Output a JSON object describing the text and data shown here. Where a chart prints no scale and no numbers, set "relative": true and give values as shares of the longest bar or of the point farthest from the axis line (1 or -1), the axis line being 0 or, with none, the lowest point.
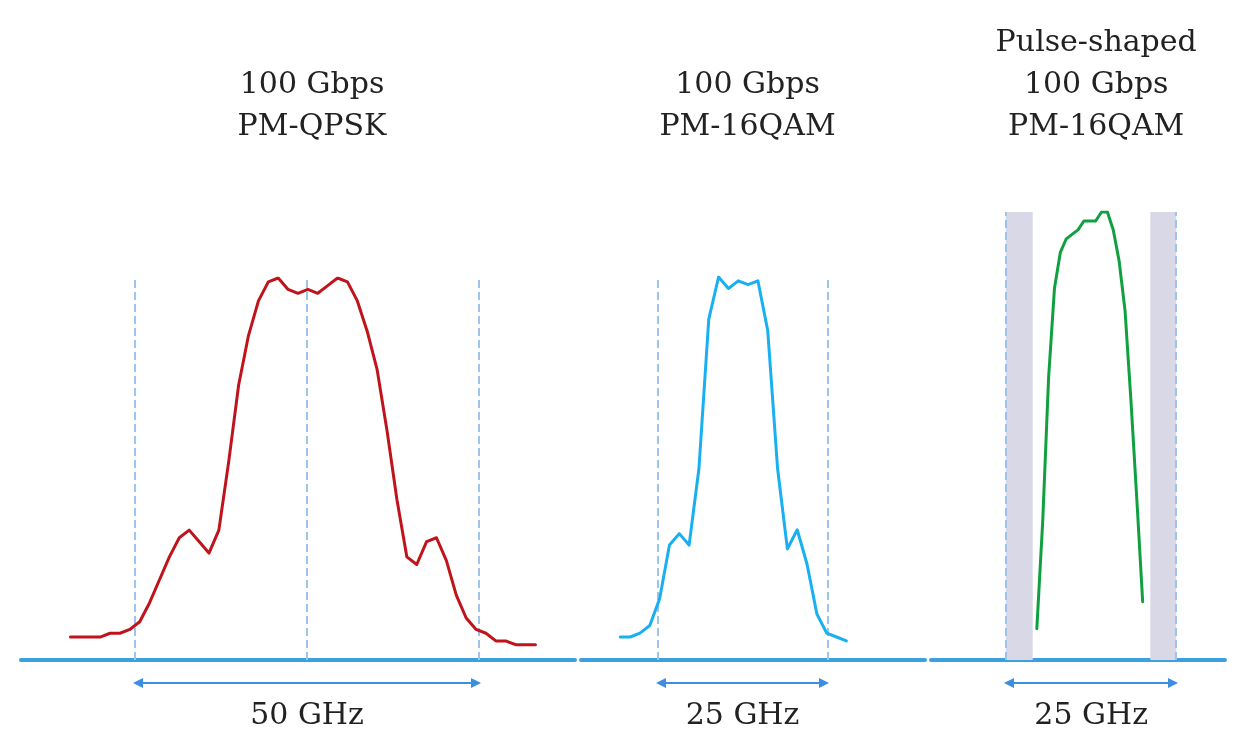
{
  "chart_data": [
    {
      "type": "line",
      "title": "100 Gbps\nPM-QPSK",
      "relative": true,
      "categories": [
        null,
        null,
        null,
        null,
        null,
        null,
        null,
        null,
        null,
        null,
        null,
        null,
        null,
        null,
        null,
        null,
        null,
        null,
        null,
        null,
        null,
        null,
        null,
        null,
        null,
        null,
        null,
        null,
        null,
        null,
        null,
        null,
        null,
        null,
        null,
        null,
        null,
        null,
        null,
        null,
        null,
        null,
        null,
        null,
        null,
        null,
        null,
        null,
        null,
        null,
        null,
        null,
        null,
        null,
        null,
        null,
        null
      ],
      "annotations": [
        "50 GHz"
      ],
      "series": [
        {
          "color": "#c0141c",
          "values": [
            null,
            null,
            null,
            null,
            null,
            0.06,
            0.06,
            0.06,
            0.06,
            0.07,
            0.07,
            0.08,
            0.1,
            0.15,
            0.21,
            0.27,
            0.32,
            0.34,
            0.31,
            0.28,
            0.34,
            0.52,
            0.72,
            0.85,
            0.94,
            0.99,
            1,
            0.97,
            0.96,
            0.97,
            0.96,
            0.98,
            1,
            0.99,
            0.94,
            0.86,
            0.76,
            0.6,
            0.42,
            0.27,
            0.25,
            0.31,
            0.32,
            0.26,
            0.17,
            0.11,
            0.08,
            0.07,
            0.05,
            0.05,
            0.04,
            0.04,
            0.04,
            null,
            null,
            null,
            null
          ]
        }
      ]
    },
    {
      "type": "line",
      "title": "100 Gbps\nPM-16QAM",
      "relative": true,
      "categories": [
        null,
        null,
        null,
        null,
        null,
        null,
        null,
        null,
        null,
        null,
        null,
        null,
        null,
        null,
        null,
        null,
        null,
        null,
        null,
        null,
        null,
        null,
        null,
        null,
        null,
        null,
        null,
        null,
        null,
        null,
        null,
        null,
        null,
        null,
        null,
        null
      ],
      "annotations": [
        "25 GHz"
      ],
      "series": [
        {
          "color": "#18b0f0",
          "values": [
            null,
            null,
            null,
            null,
            0.06,
            0.06,
            0.07,
            0.09,
            0.16,
            0.3,
            0.33,
            0.3,
            0.5,
            0.89,
            1,
            0.97,
            0.99,
            0.98,
            0.99,
            0.86,
            0.5,
            0.29,
            0.34,
            0.25,
            0.12,
            0.07,
            0.06,
            0.05,
            null,
            null,
            null,
            null,
            null,
            null,
            null,
            null
          ]
        }
      ]
    },
    {
      "type": "line",
      "title": "Pulse-shaped\n100 Gbps\nPM-16QAM",
      "relative": true,
      "categories": [
        null,
        null,
        null,
        null,
        null,
        null,
        null,
        null,
        null,
        null,
        null,
        null,
        null,
        null,
        null,
        null,
        null,
        null,
        null,
        null,
        null,
        null,
        null,
        null,
        null,
        null,
        null,
        null,
        null,
        null,
        null,
        null,
        null,
        null,
        null,
        null,
        null,
        null,
        null,
        null,
        null,
        null,
        null,
        null,
        null,
        null,
        null,
        null,
        null,
        null,
        null
      ],
      "annotations": [
        "25 GHz"
      ],
      "series": [
        {
          "color": "#10a040",
          "values": [
            null,
            null,
            null,
            null,
            null,
            null,
            null,
            null,
            null,
            null,
            null,
            null,
            null,
            null,
            null,
            null,
            null,
            null,
            0.07,
            0.31,
            0.63,
            0.83,
            0.91,
            0.94,
            0.95,
            0.96,
            0.98,
            0.98,
            0.98,
            1,
            1,
            0.96,
            0.89,
            0.78,
            0.58,
            0.36,
            0.13,
            null,
            null,
            null,
            null,
            null,
            null,
            null,
            null,
            null,
            null,
            null,
            null,
            null,
            null
          ]
        }
      ]
    }
  ]
}
